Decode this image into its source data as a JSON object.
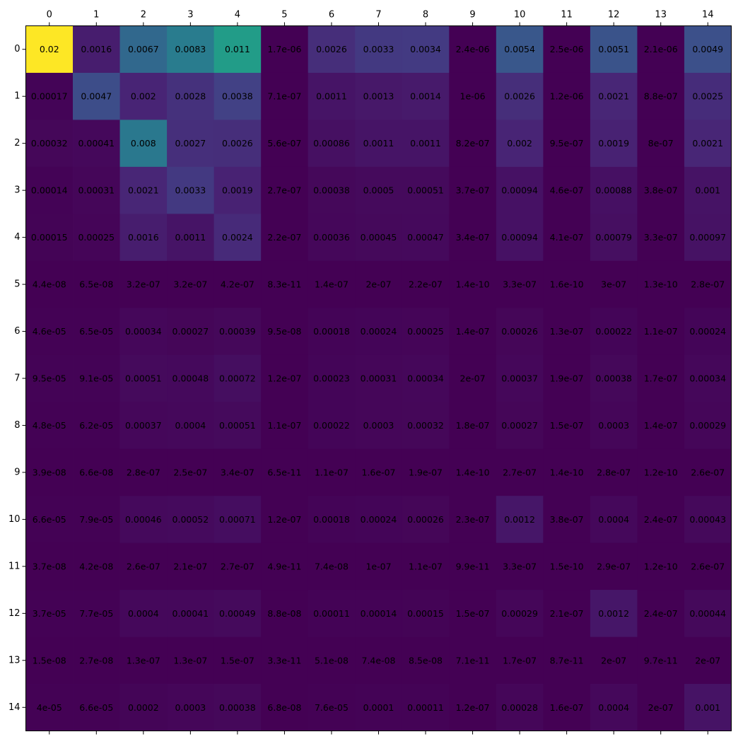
{
  "chart_data": {
    "type": "heatmap",
    "title": "",
    "xlabel": "",
    "ylabel": "",
    "colormap": "viridis",
    "color_min": 0,
    "color_max": 0.02,
    "x_tick_position": "top",
    "grid": false,
    "x_categories": [
      "0",
      "1",
      "2",
      "3",
      "4",
      "5",
      "6",
      "7",
      "8",
      "9",
      "10",
      "11",
      "12",
      "13",
      "14"
    ],
    "y_categories": [
      "0",
      "1",
      "2",
      "3",
      "4",
      "5",
      "6",
      "7",
      "8",
      "9",
      "10",
      "11",
      "12",
      "13",
      "14"
    ],
    "values": [
      [
        0.02,
        0.0016,
        0.0067,
        0.0083,
        0.011,
        1.7e-06,
        0.0026,
        0.0033,
        0.0034,
        2.4e-06,
        0.0054,
        2.5e-06,
        0.0051,
        2.1e-06,
        0.0049
      ],
      [
        0.00017,
        0.0047,
        0.002,
        0.0028,
        0.0038,
        7.1e-07,
        0.0011,
        0.0013,
        0.0014,
        1e-06,
        0.0026,
        1.2e-06,
        0.0021,
        8.8e-07,
        0.0025
      ],
      [
        0.00032,
        0.00041,
        0.008,
        0.0027,
        0.0026,
        5.6e-07,
        0.00086,
        0.0011,
        0.0011,
        8.2e-07,
        0.002,
        9.5e-07,
        0.0019,
        8e-07,
        0.0021
      ],
      [
        0.00014,
        0.00031,
        0.0021,
        0.0033,
        0.0019,
        2.7e-07,
        0.00038,
        0.0005,
        0.00051,
        3.7e-07,
        0.00094,
        4.6e-07,
        0.00088,
        3.8e-07,
        0.001
      ],
      [
        0.00015,
        0.00025,
        0.0016,
        0.0011,
        0.0024,
        2.2e-07,
        0.00036,
        0.00045,
        0.00047,
        3.4e-07,
        0.00094,
        4.1e-07,
        0.00079,
        3.3e-07,
        0.00097
      ],
      [
        4.4e-08,
        6.5e-08,
        3.2e-07,
        3.2e-07,
        4.2e-07,
        8.3e-11,
        1.4e-07,
        2e-07,
        2.2e-07,
        1.4e-10,
        3.3e-07,
        1.6e-10,
        3e-07,
        1.3e-10,
        2.8e-07
      ],
      [
        4.6e-05,
        6.5e-05,
        0.00034,
        0.00027,
        0.00039,
        9.5e-08,
        0.00018,
        0.00024,
        0.00025,
        1.4e-07,
        0.00026,
        1.3e-07,
        0.00022,
        1.1e-07,
        0.00024
      ],
      [
        9.5e-05,
        9.1e-05,
        0.00051,
        0.00048,
        0.00072,
        1.2e-07,
        0.00023,
        0.00031,
        0.00034,
        2e-07,
        0.00037,
        1.9e-07,
        0.00038,
        1.7e-07,
        0.00034
      ],
      [
        4.8e-05,
        6.2e-05,
        0.00037,
        0.0004,
        0.00051,
        1.1e-07,
        0.00022,
        0.0003,
        0.00032,
        1.8e-07,
        0.00027,
        1.5e-07,
        0.0003,
        1.4e-07,
        0.00029
      ],
      [
        3.9e-08,
        6.6e-08,
        2.8e-07,
        2.5e-07,
        3.4e-07,
        6.5e-11,
        1.1e-07,
        1.6e-07,
        1.9e-07,
        1.4e-10,
        2.7e-07,
        1.4e-10,
        2.8e-07,
        1.2e-10,
        2.6e-07
      ],
      [
        6.6e-05,
        7.9e-05,
        0.00046,
        0.00052,
        0.00071,
        1.2e-07,
        0.00018,
        0.00024,
        0.00026,
        2.3e-07,
        0.0012,
        3.8e-07,
        0.0004,
        2.4e-07,
        0.00043
      ],
      [
        3.7e-08,
        4.2e-08,
        2.6e-07,
        2.1e-07,
        2.7e-07,
        4.9e-11,
        7.4e-08,
        1e-07,
        1.1e-07,
        9.9e-11,
        3.3e-07,
        1.5e-10,
        2.9e-07,
        1.2e-10,
        2.6e-07
      ],
      [
        3.7e-05,
        7.7e-05,
        0.0004,
        0.00041,
        0.00049,
        8.8e-08,
        0.00011,
        0.00014,
        0.00015,
        1.5e-07,
        0.00029,
        2.1e-07,
        0.0012,
        2.4e-07,
        0.00044
      ],
      [
        1.5e-08,
        2.7e-08,
        1.3e-07,
        1.3e-07,
        1.5e-07,
        3.3e-11,
        5.1e-08,
        7.4e-08,
        8.5e-08,
        7.1e-11,
        1.7e-07,
        8.7e-11,
        2e-07,
        9.7e-11,
        2e-07
      ],
      [
        4e-05,
        6.6e-05,
        0.0002,
        0.0003,
        0.00038,
        6.8e-08,
        7.6e-05,
        0.0001,
        0.00011,
        1.2e-07,
        0.00028,
        1.6e-07,
        0.0004,
        2e-07,
        0.001
      ]
    ],
    "labels": [
      [
        "0.02",
        "0.0016",
        "0.0067",
        "0.0083",
        "0.011",
        "1.7e-06",
        "0.0026",
        "0.0033",
        "0.0034",
        "2.4e-06",
        "0.0054",
        "2.5e-06",
        "0.0051",
        "2.1e-06",
        "0.0049"
      ],
      [
        "0.00017",
        "0.0047",
        "0.002",
        "0.0028",
        "0.0038",
        "7.1e-07",
        "0.0011",
        "0.0013",
        "0.0014",
        "1e-06",
        "0.0026",
        "1.2e-06",
        "0.0021",
        "8.8e-07",
        "0.0025"
      ],
      [
        "0.00032",
        "0.00041",
        "0.008",
        "0.0027",
        "0.0026",
        "5.6e-07",
        "0.00086",
        "0.0011",
        "0.0011",
        "8.2e-07",
        "0.002",
        "9.5e-07",
        "0.0019",
        "8e-07",
        "0.0021"
      ],
      [
        "0.00014",
        "0.00031",
        "0.0021",
        "0.0033",
        "0.0019",
        "2.7e-07",
        "0.00038",
        "0.0005",
        "0.00051",
        "3.7e-07",
        "0.00094",
        "4.6e-07",
        "0.00088",
        "3.8e-07",
        "0.001"
      ],
      [
        "0.00015",
        "0.00025",
        "0.0016",
        "0.0011",
        "0.0024",
        "2.2e-07",
        "0.00036",
        "0.00045",
        "0.00047",
        "3.4e-07",
        "0.00094",
        "4.1e-07",
        "0.00079",
        "3.3e-07",
        "0.00097"
      ],
      [
        "4.4e-08",
        "6.5e-08",
        "3.2e-07",
        "3.2e-07",
        "4.2e-07",
        "8.3e-11",
        "1.4e-07",
        "2e-07",
        "2.2e-07",
        "1.4e-10",
        "3.3e-07",
        "1.6e-10",
        "3e-07",
        "1.3e-10",
        "2.8e-07"
      ],
      [
        "4.6e-05",
        "6.5e-05",
        "0.00034",
        "0.00027",
        "0.00039",
        "9.5e-08",
        "0.00018",
        "0.00024",
        "0.00025",
        "1.4e-07",
        "0.00026",
        "1.3e-07",
        "0.00022",
        "1.1e-07",
        "0.00024"
      ],
      [
        "9.5e-05",
        "9.1e-05",
        "0.00051",
        "0.00048",
        "0.00072",
        "1.2e-07",
        "0.00023",
        "0.00031",
        "0.00034",
        "2e-07",
        "0.00037",
        "1.9e-07",
        "0.00038",
        "1.7e-07",
        "0.00034"
      ],
      [
        "4.8e-05",
        "6.2e-05",
        "0.00037",
        "0.0004",
        "0.00051",
        "1.1e-07",
        "0.00022",
        "0.0003",
        "0.00032",
        "1.8e-07",
        "0.00027",
        "1.5e-07",
        "0.0003",
        "1.4e-07",
        "0.00029"
      ],
      [
        "3.9e-08",
        "6.6e-08",
        "2.8e-07",
        "2.5e-07",
        "3.4e-07",
        "6.5e-11",
        "1.1e-07",
        "1.6e-07",
        "1.9e-07",
        "1.4e-10",
        "2.7e-07",
        "1.4e-10",
        "2.8e-07",
        "1.2e-10",
        "2.6e-07"
      ],
      [
        "6.6e-05",
        "7.9e-05",
        "0.00046",
        "0.00052",
        "0.00071",
        "1.2e-07",
        "0.00018",
        "0.00024",
        "0.00026",
        "2.3e-07",
        "0.0012",
        "3.8e-07",
        "0.0004",
        "2.4e-07",
        "0.00043"
      ],
      [
        "3.7e-08",
        "4.2e-08",
        "2.6e-07",
        "2.1e-07",
        "2.7e-07",
        "4.9e-11",
        "7.4e-08",
        "1e-07",
        "1.1e-07",
        "9.9e-11",
        "3.3e-07",
        "1.5e-10",
        "2.9e-07",
        "1.2e-10",
        "2.6e-07"
      ],
      [
        "3.7e-05",
        "7.7e-05",
        "0.0004",
        "0.00041",
        "0.00049",
        "8.8e-08",
        "0.00011",
        "0.00014",
        "0.00015",
        "1.5e-07",
        "0.00029",
        "2.1e-07",
        "0.0012",
        "2.4e-07",
        "0.00044"
      ],
      [
        "1.5e-08",
        "2.7e-08",
        "1.3e-07",
        "1.3e-07",
        "1.5e-07",
        "3.3e-11",
        "5.1e-08",
        "7.4e-08",
        "8.5e-08",
        "7.1e-11",
        "1.7e-07",
        "8.7e-11",
        "2e-07",
        "9.7e-11",
        "2e-07"
      ],
      [
        "4e-05",
        "6.6e-05",
        "0.0002",
        "0.0003",
        "0.00038",
        "6.8e-08",
        "7.6e-05",
        "0.0001",
        "0.00011",
        "1.2e-07",
        "0.00028",
        "1.6e-07",
        "0.0004",
        "2e-07",
        "0.001"
      ]
    ]
  }
}
